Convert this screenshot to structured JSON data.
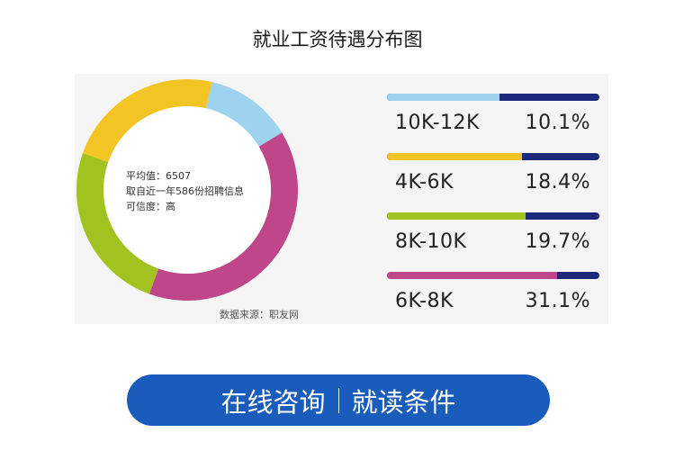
{
  "title": "就业工资待遇分布图",
  "center_text": {
    "line1": "平均值：6507",
    "line2": "取自近一年586份招聘信息",
    "line3": "可信度：高"
  },
  "source": "数据来源：职友网",
  "cta": {
    "left_label": "在线咨询",
    "right_label": "就读条件"
  },
  "colors": {
    "track": "#1d2a7c",
    "cta": "#1a5cbc"
  },
  "chart_data": {
    "type": "pie",
    "title": "就业工资待遇分布图",
    "categories": [
      "10K-12K",
      "4K-6K",
      "8K-10K",
      "6K-8K"
    ],
    "values": [
      10.1,
      18.4,
      19.7,
      31.1
    ],
    "labels": [
      "10.1%",
      "18.4%",
      "19.7%",
      "31.1%"
    ],
    "colors": [
      "#9dd3ee",
      "#f2c525",
      "#a2c31f",
      "#c0468a"
    ],
    "legend_position": "right"
  }
}
